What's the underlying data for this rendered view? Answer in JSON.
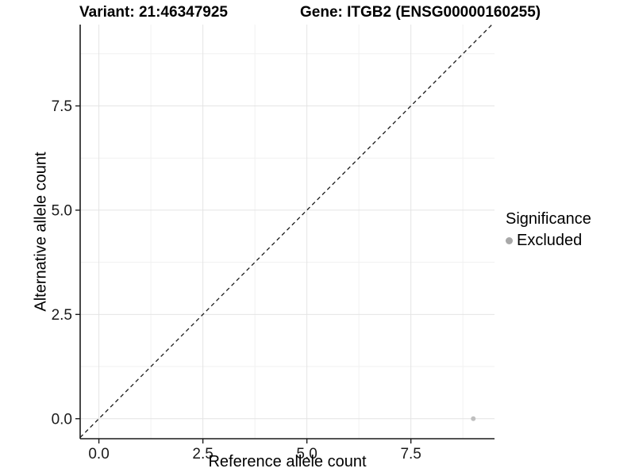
{
  "titles": {
    "variant": "Variant: 21:46347925",
    "gene": "Gene: ITGB2 (ENSG00000160255)"
  },
  "axes": {
    "x_label": "Reference allele count",
    "y_label": "Alternative allele count"
  },
  "legend": {
    "title": "Significance",
    "items": [
      {
        "label": "Excluded",
        "color": "#a8a8a8"
      }
    ]
  },
  "chart_data": {
    "type": "scatter",
    "title": "Variant: 21:46347925 — Gene: ITGB2 (ENSG00000160255)",
    "xlabel": "Reference allele count",
    "ylabel": "Alternative allele count",
    "x_domain": [
      -0.45,
      9.51
    ],
    "y_domain": [
      -0.48,
      9.45
    ],
    "major_ticks": [
      0,
      2.5,
      5,
      7.5
    ],
    "tick_labels": [
      "0.0",
      "2.5",
      "5.0",
      "7.5"
    ],
    "minor_ticks": [
      1.25,
      3.75,
      6.25,
      8.75
    ],
    "grid": true,
    "legend_position": "right",
    "identity_line": {
      "equation": "y = x",
      "style": "dashed"
    },
    "series": [
      {
        "name": "Excluded",
        "color": "#bfbfbf",
        "points": [
          {
            "x": 9,
            "y": 0
          }
        ]
      }
    ]
  },
  "style": {
    "major_grid_color": "#e4e4e4",
    "minor_grid_color": "#f1f1f1",
    "axis_color": "#1a1a1a",
    "dashed_line_color": "#1a1a1a",
    "point_radius": 3,
    "legend_dot_color": "#a8a8a8"
  }
}
